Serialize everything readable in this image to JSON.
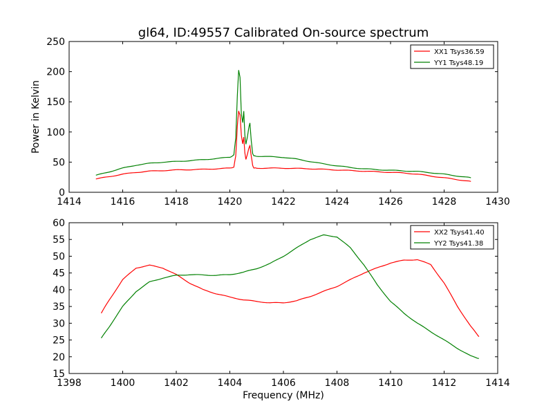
{
  "title": "gl64, ID:49557 Calibrated On-source spectrum",
  "colors": {
    "xx": "#ff0000",
    "yy": "#008000",
    "axis": "#000000",
    "background": "#ffffff"
  },
  "chart_data": [
    {
      "type": "line",
      "title": "gl64, ID:49557 Calibrated On-source spectrum",
      "xlabel": "",
      "ylabel": "Power in Kelvin",
      "xlim": [
        1414,
        1430
      ],
      "ylim": [
        0,
        250
      ],
      "xticks": [
        "1414",
        "1416",
        "1418",
        "1420",
        "1422",
        "1424",
        "1426",
        "1428",
        "1430"
      ],
      "yticks": [
        "0",
        "50",
        "100",
        "150",
        "200",
        "250"
      ],
      "grid": false,
      "legend_position": "top-right",
      "series": [
        {
          "name": "XX1 Tsys36.59",
          "color": "#ff0000",
          "x": [
            1415.0,
            1415.5,
            1416.0,
            1416.5,
            1417.0,
            1417.5,
            1418.0,
            1418.5,
            1419.0,
            1419.5,
            1420.0,
            1420.15,
            1420.22,
            1420.28,
            1420.33,
            1420.38,
            1420.43,
            1420.48,
            1420.52,
            1420.56,
            1420.6,
            1420.64,
            1420.7,
            1420.75,
            1420.8,
            1420.85,
            1420.9,
            1421.0,
            1421.5,
            1422.0,
            1422.5,
            1423.0,
            1423.5,
            1424.0,
            1424.5,
            1425.0,
            1425.5,
            1426.0,
            1426.5,
            1427.0,
            1427.5,
            1428.0,
            1428.5,
            1429.0
          ],
          "y": [
            22,
            26,
            30,
            33,
            35,
            36,
            37,
            37.5,
            38,
            39,
            40,
            42,
            60,
            110,
            135,
            128,
            95,
            80,
            92,
            65,
            55,
            60,
            72,
            77,
            60,
            45,
            40,
            40,
            40,
            40,
            39.5,
            39,
            38,
            37,
            36,
            35,
            34,
            33,
            32,
            30,
            27,
            24,
            21,
            18
          ]
        },
        {
          "name": "YY1 Tsys48.19",
          "color": "#008000",
          "x": [
            1415.0,
            1415.5,
            1416.0,
            1416.5,
            1417.0,
            1417.5,
            1418.0,
            1418.5,
            1419.0,
            1419.5,
            1420.0,
            1420.15,
            1420.22,
            1420.28,
            1420.33,
            1420.38,
            1420.43,
            1420.48,
            1420.52,
            1420.56,
            1420.6,
            1420.64,
            1420.7,
            1420.75,
            1420.8,
            1420.85,
            1420.9,
            1421.0,
            1421.5,
            1422.0,
            1422.5,
            1423.0,
            1423.5,
            1424.0,
            1424.5,
            1425.0,
            1425.5,
            1426.0,
            1426.5,
            1427.0,
            1427.5,
            1428.0,
            1428.5,
            1429.0
          ],
          "y": [
            28,
            34,
            40,
            45,
            48,
            50,
            51,
            52.5,
            54,
            56,
            58,
            62,
            90,
            160,
            203,
            190,
            130,
            115,
            135,
            95,
            80,
            88,
            105,
            115,
            85,
            65,
            60,
            60,
            59,
            58,
            55,
            51,
            47,
            44,
            41,
            39,
            37.5,
            36.5,
            35.5,
            34.5,
            32.5,
            30,
            27,
            24
          ]
        }
      ]
    },
    {
      "type": "line",
      "title": "",
      "xlabel": "Frequency (MHz)",
      "ylabel": "",
      "xlim": [
        1398,
        1414
      ],
      "ylim": [
        15,
        60
      ],
      "xticks": [
        "1398",
        "1400",
        "1402",
        "1404",
        "1406",
        "1408",
        "1410",
        "1412",
        "1414"
      ],
      "yticks": [
        "15",
        "20",
        "25",
        "30",
        "35",
        "40",
        "45",
        "50",
        "55",
        "60"
      ],
      "grid": false,
      "legend_position": "top-right",
      "series": [
        {
          "name": "XX2 Tsys41.40",
          "color": "#ff0000",
          "x": [
            1399.2,
            1399.5,
            1400.0,
            1400.5,
            1401.0,
            1401.5,
            1402.0,
            1402.5,
            1403.0,
            1403.5,
            1404.0,
            1404.5,
            1405.0,
            1405.5,
            1406.0,
            1406.5,
            1407.0,
            1407.5,
            1408.0,
            1408.5,
            1409.0,
            1409.5,
            1410.0,
            1410.5,
            1411.0,
            1411.5,
            1412.0,
            1412.5,
            1413.0,
            1413.3
          ],
          "y": [
            33,
            37,
            43,
            46.5,
            47.3,
            46.5,
            44.5,
            42,
            40,
            38.8,
            37.8,
            37,
            36.5,
            36.1,
            36.1,
            36.7,
            38,
            39.5,
            41,
            43,
            45,
            46.5,
            48,
            48.8,
            49,
            47.5,
            42,
            35,
            29,
            26
          ]
        },
        {
          "name": "YY2 Tsys41.38",
          "color": "#008000",
          "x": [
            1399.2,
            1399.5,
            1400.0,
            1400.5,
            1401.0,
            1401.5,
            1402.0,
            1402.5,
            1403.0,
            1403.5,
            1404.0,
            1404.5,
            1405.0,
            1405.5,
            1406.0,
            1406.5,
            1407.0,
            1407.5,
            1408.0,
            1408.5,
            1409.0,
            1409.5,
            1410.0,
            1410.5,
            1411.0,
            1411.5,
            1412.0,
            1412.5,
            1413.0,
            1413.3
          ],
          "y": [
            25.5,
            29,
            35,
            39.5,
            42.3,
            43.5,
            44.3,
            44.5,
            44.4,
            44.3,
            44.5,
            45.2,
            46.3,
            47.8,
            50,
            52.5,
            55,
            56.3,
            55.8,
            52.5,
            47.5,
            41.5,
            36.5,
            33,
            30,
            27.5,
            25,
            22.5,
            20.2,
            19.5
          ]
        }
      ]
    }
  ]
}
